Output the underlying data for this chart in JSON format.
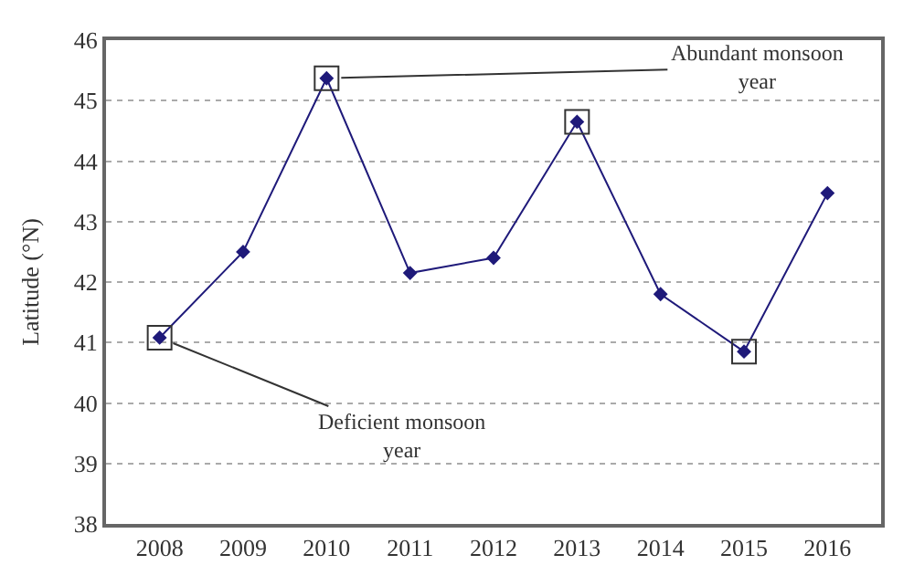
{
  "chart_data": {
    "type": "line",
    "ylabel": "Latitude (°N)",
    "categories": [
      "2008",
      "2009",
      "2010",
      "2011",
      "2012",
      "2013",
      "2014",
      "2015",
      "2016"
    ],
    "series": [
      {
        "color": "#1f1a7a",
        "marker": "diamond",
        "values": [
          41.08,
          42.5,
          45.37,
          42.15,
          42.4,
          44.65,
          41.8,
          40.85,
          43.47
        ]
      },
      {
        "type": "scatter",
        "color": "#333333",
        "marker": "square",
        "values": [
          41.08,
          null,
          45.37,
          null,
          null,
          44.65,
          null,
          40.85,
          null
        ]
      }
    ],
    "ylim": [
      38,
      46
    ],
    "yticks": [
      38,
      39,
      40,
      41,
      42,
      43,
      44,
      45,
      46
    ],
    "grid": "y",
    "annotations": [
      {
        "text": "Abundant monsoon year",
        "x": "2010",
        "y": 45.37
      },
      {
        "text": "Deficient monsoon year",
        "x": "2008",
        "y": 41.08
      }
    ]
  }
}
